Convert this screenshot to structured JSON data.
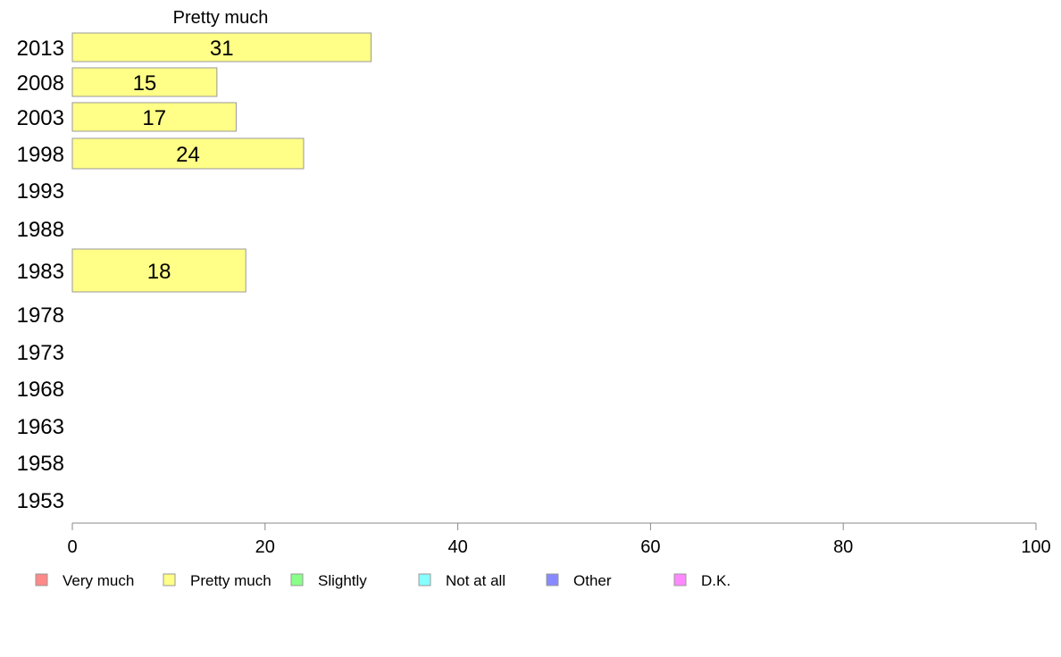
{
  "chart_data": {
    "type": "bar",
    "orientation": "horizontal",
    "title": "Pretty much",
    "categories": [
      "2013",
      "2008",
      "2003",
      "1998",
      "1993",
      "1988",
      "1983",
      "1978",
      "1973",
      "1968",
      "1963",
      "1958",
      "1953"
    ],
    "series": [
      {
        "name": "Pretty much",
        "color": "#ffff88",
        "values": [
          31,
          15,
          17,
          24,
          null,
          null,
          18,
          null,
          null,
          null,
          null,
          null,
          null
        ]
      }
    ],
    "xlim": [
      0,
      100
    ],
    "xticks": [
      0,
      20,
      40,
      60,
      80,
      100
    ],
    "grid": false,
    "legend": {
      "placement": "bottom",
      "items": [
        {
          "label": "Very much",
          "color": "#ff8888"
        },
        {
          "label": "Pretty much",
          "color": "#ffff88"
        },
        {
          "label": "Slightly",
          "color": "#88ff88"
        },
        {
          "label": "Not at all",
          "color": "#88ffff"
        },
        {
          "label": "Other",
          "color": "#8888ff"
        },
        {
          "label": "D.K.",
          "color": "#ff88ff"
        }
      ]
    }
  }
}
